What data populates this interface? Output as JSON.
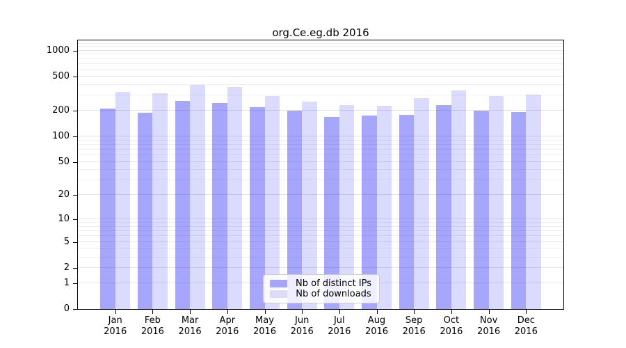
{
  "title": "org.Ce.eg.db 2016",
  "chart_data": {
    "type": "bar",
    "title": "org.Ce.eg.db 2016",
    "scale": "log10(1+y)",
    "grid": "minor-and-major-horizontal",
    "legend_position": "bottom-center-inside",
    "year": "2016",
    "months": [
      "Jan",
      "Feb",
      "Mar",
      "Apr",
      "May",
      "Jun",
      "Jul",
      "Aug",
      "Sep",
      "Oct",
      "Nov",
      "Dec"
    ],
    "series": [
      {
        "name": "Nb of distinct IPs",
        "color": "rgba(0,0,245,0.35)",
        "swatch_color": "#a6a6f7",
        "values": [
          213,
          188,
          259,
          247,
          221,
          200,
          169,
          174,
          177,
          232,
          199,
          194
        ]
      },
      {
        "name": "Nb of downloads",
        "color": "rgba(0,0,245,0.14)",
        "swatch_color": "#dcdcfa",
        "values": [
          333,
          321,
          402,
          380,
          293,
          253,
          233,
          227,
          278,
          345,
          296,
          304
        ]
      }
    ],
    "yticks": [
      0,
      1,
      2,
      5,
      10,
      20,
      50,
      100,
      200,
      500,
      1000
    ],
    "ylim": [
      0,
      1300
    ],
    "colors": {
      "grid_major": "#e4e4e4",
      "grid_minor": "#efefef",
      "spine": "#000000",
      "text": "#000000"
    }
  },
  "legend": {
    "items": [
      {
        "label": "Nb of distinct IPs"
      },
      {
        "label": "Nb of downloads"
      }
    ]
  }
}
